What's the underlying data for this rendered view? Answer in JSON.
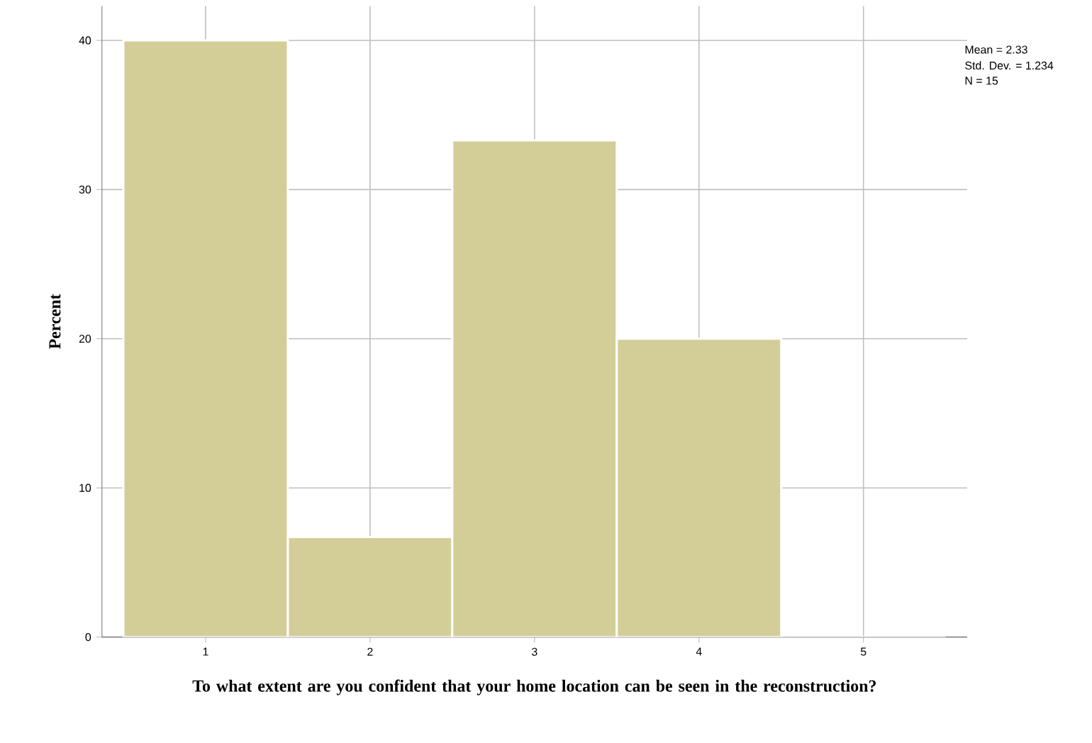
{
  "chart_data": {
    "type": "histogram",
    "xlabel": "To what extent are you confident that your home location can be seen in the reconstruction?",
    "ylabel": "Percent",
    "bins": [
      0.5,
      1.5,
      2.5,
      3.5,
      4.5,
      5.5
    ],
    "values": [
      40,
      6.7,
      33.3,
      20,
      0
    ],
    "color": "#d3ce98",
    "xlim": [
      0.37,
      5.63
    ],
    "ylim": [
      0,
      42.3
    ],
    "xticks": [
      1,
      2,
      3,
      4,
      5
    ],
    "yticks": [
      0,
      10,
      20,
      30,
      40
    ],
    "grid": true,
    "annotations": [
      "Mean = 2.33",
      "Std. Dev. = 1.234",
      "N = 15"
    ]
  }
}
